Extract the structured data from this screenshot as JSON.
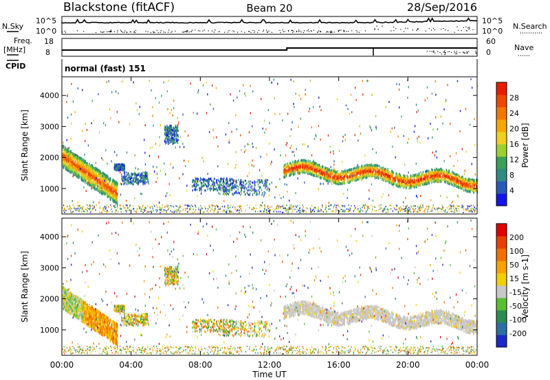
{
  "header": {
    "title": "Blackstone (fitACF)",
    "beam": "Beam 20",
    "date": "28/Sep/2016"
  },
  "panels": {
    "nsky": {
      "left_label": "N.Sky",
      "right_label": "N.Search",
      "left_ticks": [
        "10^5",
        "10^0"
      ],
      "right_ticks": [
        "10^5",
        "10^0"
      ]
    },
    "freq": {
      "left_label": "Freq.",
      "left_unit": "[MHz]",
      "right_label": "Nave",
      "left_ticks": [
        "18",
        "8"
      ],
      "right_ticks": [
        "60",
        "0"
      ]
    },
    "cpid": {
      "label": "CPID",
      "value": "normal (fast) 151"
    }
  },
  "chart_data": [
    {
      "type": "heatmap",
      "name": "power",
      "ylabel": "Slant Range [km]",
      "xlabel": "Time UT",
      "xlim": [
        0,
        24
      ],
      "ylim": [
        180,
        4600
      ],
      "yticks": [
        1000,
        2000,
        3000,
        4000
      ],
      "xticks": [
        "00:00",
        "04:00",
        "08:00",
        "12:00",
        "16:00",
        "20:00",
        "00:00"
      ],
      "colorbar": {
        "label": "Power [dB]",
        "ticks": [
          "4",
          "8",
          "12",
          "16",
          "20",
          "24",
          "28"
        ],
        "colors": [
          "#1414e6",
          "#2a58b8",
          "#2f8a80",
          "#3aa05a",
          "#9cd032",
          "#f0d020",
          "#f7a600",
          "#f07800",
          "#ec4800",
          "#e61e00"
        ]
      }
    },
    {
      "type": "heatmap",
      "name": "velocity",
      "ylabel": "Slant Range [km]",
      "xlabel": "Time UT",
      "xlim": [
        0,
        24
      ],
      "ylim": [
        180,
        4600
      ],
      "yticks": [
        1000,
        2000,
        3000,
        4000
      ],
      "xticks": [
        "00:00",
        "04:00",
        "08:00",
        "12:00",
        "16:00",
        "20:00",
        "00:00"
      ],
      "colorbar": {
        "label": "Velocity [m s-1]",
        "ticks": [
          "200",
          "100",
          "50",
          "15",
          "-15",
          "-50",
          "-100",
          "-200"
        ],
        "colors": [
          "#1e28c8",
          "#2e6ea0",
          "#2c8c50",
          "#5abe32",
          "#c8c8c8",
          "#f0d000",
          "#f6a200",
          "#f07000",
          "#e84000",
          "#e00000"
        ]
      }
    }
  ]
}
